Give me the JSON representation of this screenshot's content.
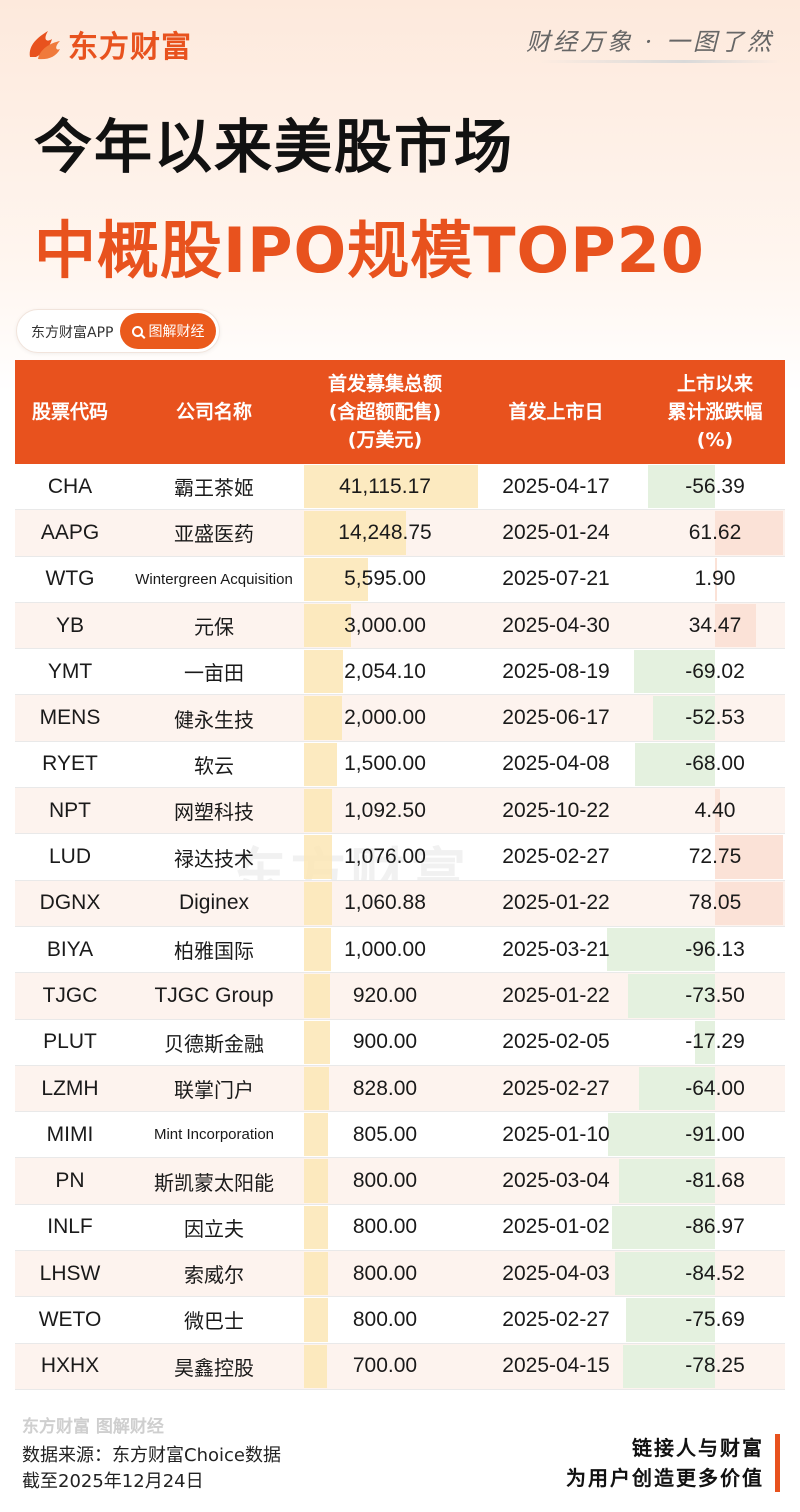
{
  "brand": {
    "name": "东方财富",
    "slogan": "财经万象 · 一图了然"
  },
  "title": {
    "line1": "今年以来美股市场",
    "line2": "中概股IPO规模TOP20"
  },
  "app_chip": {
    "app_name": "东方财富APP",
    "button": "图解财经"
  },
  "table": {
    "headers": {
      "code": "股票代码",
      "name": "公司名称",
      "amount": [
        "首发募集总额",
        "(含超额配售)",
        "(万美元)"
      ],
      "date": "首发上市日",
      "change": [
        "上市以来",
        "累计涨跌幅",
        "(%)"
      ]
    }
  },
  "chart_data": {
    "type": "table",
    "columns": [
      "股票代码",
      "公司名称",
      "首发募集总额(含超额配售)(万美元)",
      "首发上市日",
      "上市以来累计涨跌幅(%)"
    ],
    "rows": [
      {
        "code": "CHA",
        "name": "霸王茶姬",
        "amount": "41,115.17",
        "amount_value": 41115.17,
        "date": "2025-04-17",
        "change": "-56.39",
        "change_value": -56.39
      },
      {
        "code": "AAPG",
        "name": "亚盛医药",
        "amount": "14,248.75",
        "amount_value": 14248.75,
        "date": "2025-01-24",
        "change": "61.62",
        "change_value": 61.62
      },
      {
        "code": "WTG",
        "name": "Wintergreen Acquisition",
        "amount": "5,595.00",
        "amount_value": 5595.0,
        "date": "2025-07-21",
        "change": "1.90",
        "change_value": 1.9
      },
      {
        "code": "YB",
        "name": "元保",
        "amount": "3,000.00",
        "amount_value": 3000.0,
        "date": "2025-04-30",
        "change": "34.47",
        "change_value": 34.47
      },
      {
        "code": "YMT",
        "name": "一亩田",
        "amount": "2,054.10",
        "amount_value": 2054.1,
        "date": "2025-08-19",
        "change": "-69.02",
        "change_value": -69.02
      },
      {
        "code": "MENS",
        "name": "健永生技",
        "amount": "2,000.00",
        "amount_value": 2000.0,
        "date": "2025-06-17",
        "change": "-52.53",
        "change_value": -52.53
      },
      {
        "code": "RYET",
        "name": "软云",
        "amount": "1,500.00",
        "amount_value": 1500.0,
        "date": "2025-04-08",
        "change": "-68.00",
        "change_value": -68.0
      },
      {
        "code": "NPT",
        "name": "网塑科技",
        "amount": "1,092.50",
        "amount_value": 1092.5,
        "date": "2025-10-22",
        "change": "4.40",
        "change_value": 4.4
      },
      {
        "code": "LUD",
        "name": "禄达技术",
        "amount": "1,076.00",
        "amount_value": 1076.0,
        "date": "2025-02-27",
        "change": "72.75",
        "change_value": 72.75
      },
      {
        "code": "DGNX",
        "name": "Diginex",
        "amount": "1,060.88",
        "amount_value": 1060.88,
        "date": "2025-01-22",
        "change": "78.05",
        "change_value": 78.05
      },
      {
        "code": "BIYA",
        "name": "柏雅国际",
        "amount": "1,000.00",
        "amount_value": 1000.0,
        "date": "2025-03-21",
        "change": "-96.13",
        "change_value": -96.13
      },
      {
        "code": "TJGC",
        "name": "TJGC Group",
        "amount": "920.00",
        "amount_value": 920.0,
        "date": "2025-01-22",
        "change": "-73.50",
        "change_value": -73.5
      },
      {
        "code": "PLUT",
        "name": "贝德斯金融",
        "amount": "900.00",
        "amount_value": 900.0,
        "date": "2025-02-05",
        "change": "-17.29",
        "change_value": -17.29
      },
      {
        "code": "LZMH",
        "name": "联掌门户",
        "amount": "828.00",
        "amount_value": 828.0,
        "date": "2025-02-27",
        "change": "-64.00",
        "change_value": -64.0
      },
      {
        "code": "MIMI",
        "name": "Mint Incorporation",
        "amount": "805.00",
        "amount_value": 805.0,
        "date": "2025-01-10",
        "change": "-91.00",
        "change_value": -91.0
      },
      {
        "code": "PN",
        "name": "斯凯蒙太阳能",
        "amount": "800.00",
        "amount_value": 800.0,
        "date": "2025-03-04",
        "change": "-81.68",
        "change_value": -81.68
      },
      {
        "code": "INLF",
        "name": "因立夫",
        "amount": "800.00",
        "amount_value": 800.0,
        "date": "2025-01-02",
        "change": "-86.97",
        "change_value": -86.97
      },
      {
        "code": "LHSW",
        "name": "索威尔",
        "amount": "800.00",
        "amount_value": 800.0,
        "date": "2025-04-03",
        "change": "-84.52",
        "change_value": -84.52
      },
      {
        "code": "WETO",
        "name": "微巴士",
        "amount": "800.00",
        "amount_value": 800.0,
        "date": "2025-02-27",
        "change": "-75.69",
        "change_value": -75.69
      },
      {
        "code": "HXHX",
        "name": "昊鑫控股",
        "amount": "700.00",
        "amount_value": 700.0,
        "date": "2025-04-15",
        "change": "-78.25",
        "change_value": -78.25
      }
    ]
  },
  "footer": {
    "logo_text": "东方财富 图解财经",
    "source": "数据来源：东方财富Choice数据",
    "asof": "截至2025年12月24日",
    "tagline1": "链接人与财富",
    "tagline2": "为用户创造更多价值"
  },
  "colors": {
    "accent": "#e8521e",
    "amount_bar": "#fbe6b5",
    "neg_bar": "#e4f1df",
    "pos_bar": "#fbe2d7"
  }
}
